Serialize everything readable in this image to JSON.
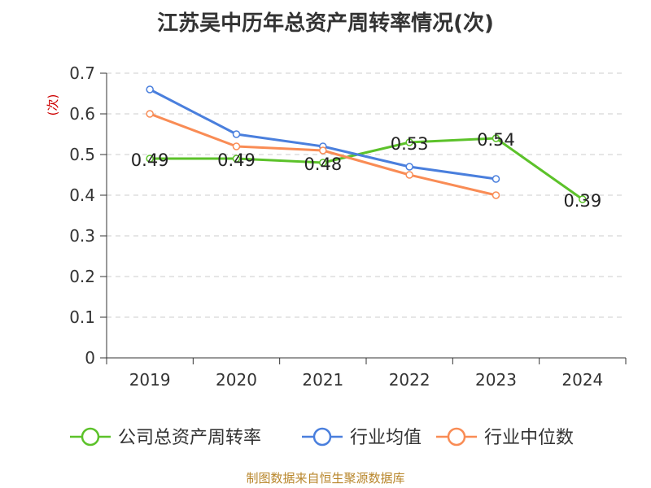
{
  "page": {
    "title": "江苏吴中历年总资产周转率情况(次)",
    "source": "制图数据来自恒生聚源数据库"
  },
  "chart_data": {
    "type": "line",
    "title": "江苏吴中历年总资产周转率情况(次)",
    "ylabel": "(次)",
    "xlabel": "",
    "categories": [
      "2019",
      "2020",
      "2021",
      "2022",
      "2023",
      "2024"
    ],
    "ylim": [
      0,
      0.7
    ],
    "yticks": [
      "0",
      "0.1",
      "0.2",
      "0.3",
      "0.4",
      "0.5",
      "0.6",
      "0.7"
    ],
    "grid": true,
    "legend_position": "bottom",
    "series": [
      {
        "name": "公司总资产周转率",
        "color": "#5cc22a",
        "values": [
          0.49,
          0.49,
          0.48,
          0.53,
          0.54,
          0.39
        ],
        "labels": [
          "0.49",
          "0.49",
          "0.48",
          "0.53",
          "0.54",
          "0.39"
        ]
      },
      {
        "name": "行业均值",
        "color": "#4a7fdd",
        "values": [
          0.66,
          0.55,
          0.52,
          0.47,
          0.44,
          null
        ]
      },
      {
        "name": "行业中位数",
        "color": "#f98c55",
        "values": [
          0.6,
          0.52,
          0.51,
          0.45,
          0.4,
          null
        ]
      }
    ]
  }
}
